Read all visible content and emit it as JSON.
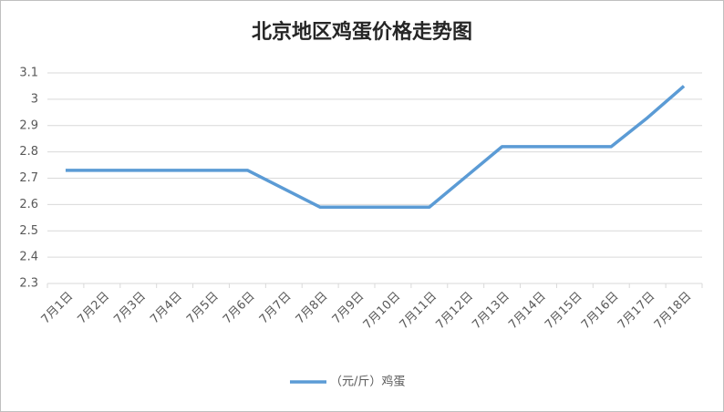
{
  "chart_data": {
    "type": "line",
    "title": "北京地区鸡蛋价格走势图",
    "categories": [
      "7月1日",
      "7月2日",
      "7月3日",
      "7月4日",
      "7月5日",
      "7月6日",
      "7月7日",
      "7月8日",
      "7月9日",
      "7月10日",
      "7月11日",
      "7月12日",
      "7月13日",
      "7月14日",
      "7月15日",
      "7月16日",
      "7月17日",
      "7月18日"
    ],
    "series": [
      {
        "name": "（元/斤）鸡蛋",
        "color": "#5b9bd5",
        "values": [
          2.73,
          2.73,
          2.73,
          2.73,
          2.73,
          2.73,
          2.66,
          2.59,
          2.59,
          2.59,
          2.59,
          2.705,
          2.82,
          2.82,
          2.82,
          2.82,
          2.93,
          3.05
        ]
      }
    ],
    "ylim": [
      2.3,
      3.1
    ],
    "yticks": [
      2.3,
      2.4,
      2.5,
      2.6,
      2.7,
      2.8,
      2.9,
      3,
      3.1
    ],
    "grid": true,
    "legend": "bottom"
  }
}
